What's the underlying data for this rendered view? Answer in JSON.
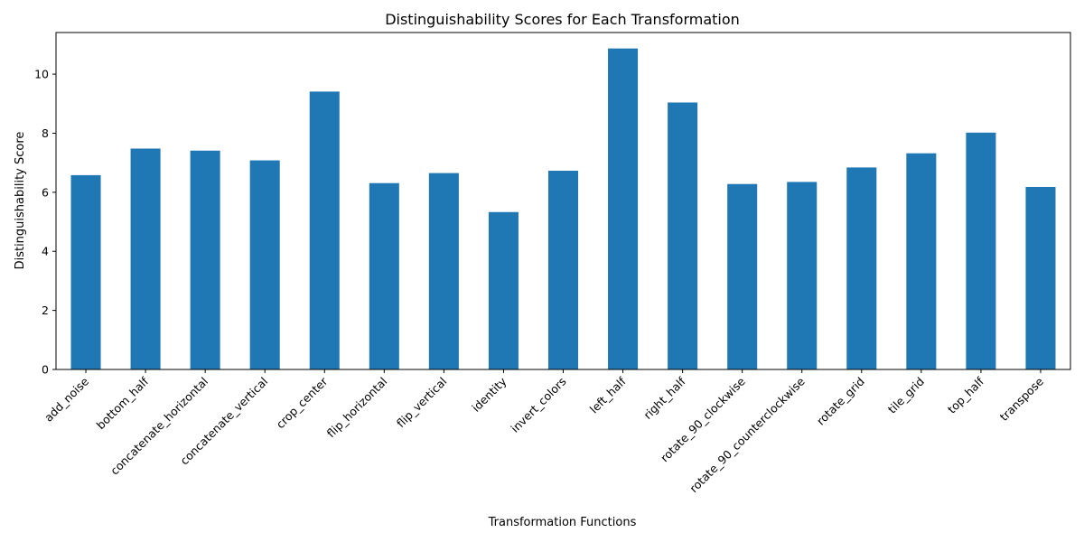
{
  "chart_data": {
    "type": "bar",
    "title": "Distinguishability Scores for Each Transformation",
    "xlabel": "Transformation Functions",
    "ylabel": "Distinguishability Score",
    "categories": [
      "add_noise",
      "bottom_half",
      "concatenate_horizontal",
      "concatenate_vertical",
      "crop_center",
      "flip_horizontal",
      "flip_vertical",
      "identity",
      "invert_colors",
      "left_half",
      "right_half",
      "rotate_90_clockwise",
      "rotate_90_counterclockwise",
      "rotate_grid",
      "tile_grid",
      "top_half",
      "transpose"
    ],
    "values": [
      6.58,
      7.48,
      7.41,
      7.08,
      9.41,
      6.31,
      6.65,
      5.33,
      6.73,
      10.87,
      9.04,
      6.28,
      6.35,
      6.84,
      7.32,
      8.02,
      6.18
    ],
    "yticks": [
      0,
      2,
      4,
      6,
      8,
      10
    ],
    "ylim": [
      0,
      11.41
    ],
    "grid": false,
    "legend": "none",
    "bar_color": "#1f77b4"
  }
}
